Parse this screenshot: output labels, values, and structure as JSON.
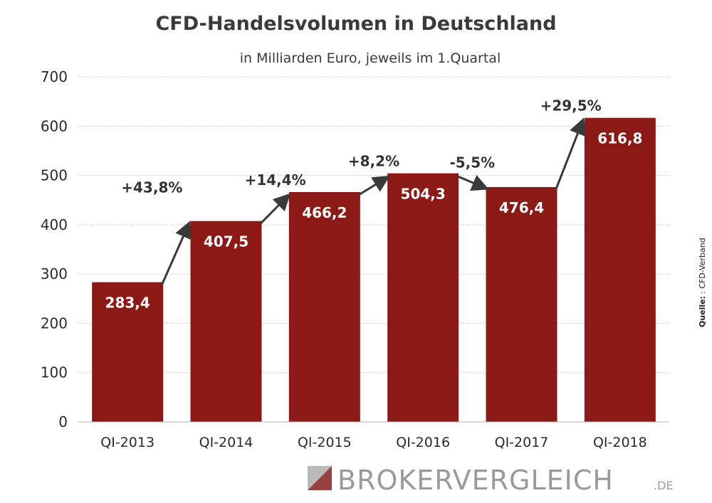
{
  "chart_data": {
    "type": "bar",
    "title": "CFD-Handelsvolumen in Deutschland",
    "subtitle": "in Milliarden Euro, jeweils im 1.Quartal",
    "categories": [
      "QI-2013",
      "QI-2014",
      "QI-2015",
      "QI-2016",
      "QI-2017",
      "QI-2018"
    ],
    "values": [
      283.4,
      407.5,
      466.2,
      504.3,
      476.4,
      616.8
    ],
    "value_labels": [
      "283,4",
      "407,5",
      "466,2",
      "504,3",
      "476,4",
      "616,8"
    ],
    "change_labels": [
      "+43,8%",
      "+14,4%",
      "+8,2%",
      "-5,5%",
      "+29,5%"
    ],
    "ylim": [
      0,
      700
    ],
    "yticks": [
      0,
      100,
      200,
      300,
      400,
      500,
      600,
      700
    ],
    "grid": true,
    "bar_color": "#8b1a17",
    "source_label": "Quelle:",
    "source_value": ": CFD-Verband"
  },
  "logo": {
    "main": "BROKERVERGLEICH",
    "tld": ".DE"
  }
}
